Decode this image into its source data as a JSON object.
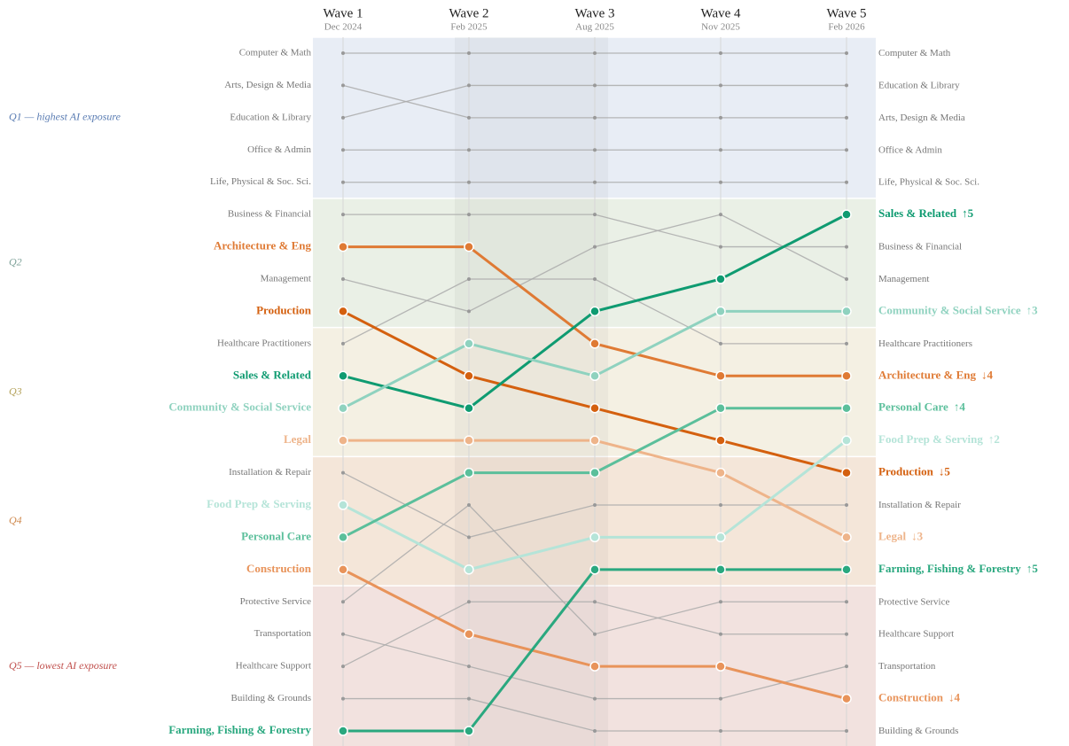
{
  "chart_data": {
    "type": "bump",
    "ylim": [
      1,
      22
    ],
    "waves": [
      {
        "label": "Wave 1",
        "date": "Dec 2024"
      },
      {
        "label": "Wave 2",
        "date": "Feb 2025"
      },
      {
        "label": "Wave 3",
        "date": "Aug 2025"
      },
      {
        "label": "Wave 4",
        "date": "Nov 2025"
      },
      {
        "label": "Wave 5",
        "date": "Feb 2026"
      }
    ],
    "quintiles": [
      {
        "label": "Q1 — highest AI exposure",
        "rows": [
          1,
          5
        ],
        "color": "#5b7db3",
        "fill": "#e8edf5"
      },
      {
        "label": "Q2",
        "rows": [
          6,
          9
        ],
        "color": "#7fa39a",
        "fill": "#eaf0e6"
      },
      {
        "label": "Q3",
        "rows": [
          10,
          13
        ],
        "color": "#b5a35c",
        "fill": "#f4f0e3"
      },
      {
        "label": "Q4",
        "rows": [
          14,
          17
        ],
        "color": "#cf8a4f",
        "fill": "#f4e6d9"
      },
      {
        "label": "Q5 — lowest AI exposure",
        "rows": [
          18,
          22
        ],
        "color": "#c0504d",
        "fill": "#f2e2df"
      }
    ],
    "series": [
      {
        "name": "Computer & Math",
        "color": "#aaaaaa",
        "values": [
          1,
          1,
          1,
          1,
          1
        ]
      },
      {
        "name": "Arts, Design & Media",
        "color": "#aaaaaa",
        "values": [
          2,
          3,
          3,
          3,
          3
        ]
      },
      {
        "name": "Education & Library",
        "color": "#aaaaaa",
        "values": [
          3,
          2,
          2,
          2,
          2
        ]
      },
      {
        "name": "Office & Admin",
        "color": "#aaaaaa",
        "values": [
          4,
          4,
          4,
          4,
          4
        ]
      },
      {
        "name": "Life, Physical & Soc. Sci.",
        "color": "#aaaaaa",
        "values": [
          5,
          5,
          5,
          5,
          5
        ]
      },
      {
        "name": "Business & Financial",
        "color": "#aaaaaa",
        "values": [
          6,
          6,
          6,
          7,
          7
        ]
      },
      {
        "name": "Architecture & Eng",
        "color": "#df7a34",
        "values": [
          7,
          7,
          10,
          11,
          11
        ],
        "change": "↓4",
        "highlight": true
      },
      {
        "name": "Management",
        "color": "#aaaaaa",
        "values": [
          8,
          9,
          7,
          6,
          8
        ]
      },
      {
        "name": "Production",
        "color": "#d4600f",
        "values": [
          9,
          11,
          12,
          13,
          14
        ],
        "change": "↓5",
        "highlight": true
      },
      {
        "name": "Healthcare Practitioners",
        "color": "#aaaaaa",
        "values": [
          10,
          8,
          8,
          10,
          10
        ]
      },
      {
        "name": "Sales & Related",
        "color": "#0f9b71",
        "values": [
          11,
          12,
          9,
          8,
          6
        ],
        "change": "↑5",
        "highlight": true
      },
      {
        "name": "Community & Social Service",
        "color": "#8fd2bf",
        "values": [
          12,
          10,
          11,
          9,
          9
        ],
        "change": "↑3",
        "highlight": true
      },
      {
        "name": "Legal",
        "color": "#eeb48a",
        "values": [
          13,
          13,
          13,
          14,
          16
        ],
        "change": "↓3",
        "highlight": true
      },
      {
        "name": "Installation & Repair",
        "color": "#aaaaaa",
        "values": [
          14,
          16,
          15,
          15,
          15
        ]
      },
      {
        "name": "Food Prep & Serving",
        "color": "#b5e4d8",
        "values": [
          15,
          17,
          16,
          16,
          13
        ],
        "change": "↑2",
        "highlight": true
      },
      {
        "name": "Personal Care",
        "color": "#5bbf9b",
        "values": [
          16,
          14,
          14,
          12,
          12
        ],
        "change": "↑4",
        "highlight": true
      },
      {
        "name": "Construction",
        "color": "#e8935a",
        "values": [
          17,
          19,
          20,
          20,
          21
        ],
        "change": "↓4",
        "highlight": true
      },
      {
        "name": "Protective Service",
        "color": "#aaaaaa",
        "values": [
          18,
          15,
          19,
          18,
          18
        ]
      },
      {
        "name": "Transportation",
        "color": "#aaaaaa",
        "values": [
          19,
          20,
          21,
          21,
          20
        ]
      },
      {
        "name": "Healthcare Support",
        "color": "#aaaaaa",
        "values": [
          20,
          18,
          18,
          19,
          19
        ]
      },
      {
        "name": "Building & Grounds",
        "color": "#aaaaaa",
        "values": [
          21,
          21,
          22,
          22,
          22
        ]
      },
      {
        "name": "Farming, Fishing & Forestry",
        "color": "#2aa87f",
        "values": [
          22,
          22,
          17,
          17,
          17
        ],
        "change": "↑5",
        "highlight": true
      }
    ]
  }
}
